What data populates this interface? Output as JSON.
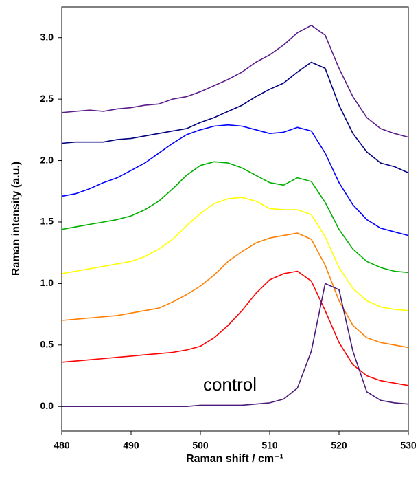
{
  "chart_data": {
    "type": "line",
    "x_label": "Raman shift / cm⁻¹",
    "y_label": "Raman intensity (a.u.)",
    "x": [
      480,
      482,
      484,
      486,
      488,
      490,
      492,
      494,
      496,
      498,
      500,
      502,
      504,
      506,
      508,
      510,
      512,
      514,
      516,
      518,
      520,
      522,
      524,
      526,
      528,
      530
    ],
    "xlim": [
      480,
      530
    ],
    "xticks": [
      480,
      490,
      500,
      510,
      520,
      530
    ],
    "ylim": [
      -0.2,
      3.25
    ],
    "yticks": [
      {
        "value": 0,
        "label": "0.0"
      },
      0.5,
      {
        "value": 1,
        "label": "1.0"
      },
      1.5,
      {
        "value": 2,
        "label": "2.0"
      },
      2.5,
      {
        "value": 3,
        "label": "3.0"
      }
    ],
    "series": [
      {
        "color": "#5a1e8c",
        "values": [
          2.39,
          2.4,
          2.41,
          2.4,
          2.42,
          2.43,
          2.45,
          2.46,
          2.5,
          2.52,
          2.56,
          2.61,
          2.66,
          2.72,
          2.8,
          2.86,
          2.94,
          3.04,
          3.1,
          3.02,
          2.75,
          2.52,
          2.35,
          2.26,
          2.22,
          2.19
        ]
      },
      {
        "color": "#000080",
        "values": [
          2.14,
          2.15,
          2.15,
          2.15,
          2.17,
          2.18,
          2.2,
          2.22,
          2.24,
          2.26,
          2.31,
          2.35,
          2.4,
          2.45,
          2.52,
          2.58,
          2.63,
          2.72,
          2.8,
          2.75,
          2.45,
          2.22,
          2.07,
          1.98,
          1.95,
          1.9
        ]
      },
      {
        "color": "#0000ff",
        "values": [
          1.71,
          1.73,
          1.77,
          1.82,
          1.86,
          1.92,
          1.98,
          2.06,
          2.14,
          2.21,
          2.25,
          2.28,
          2.29,
          2.28,
          2.25,
          2.22,
          2.23,
          2.27,
          2.24,
          2.06,
          1.82,
          1.64,
          1.52,
          1.45,
          1.42,
          1.39
        ]
      },
      {
        "color": "#00b000",
        "values": [
          1.44,
          1.46,
          1.48,
          1.5,
          1.52,
          1.55,
          1.6,
          1.67,
          1.77,
          1.88,
          1.96,
          1.99,
          1.98,
          1.94,
          1.88,
          1.82,
          1.8,
          1.86,
          1.83,
          1.66,
          1.44,
          1.28,
          1.18,
          1.13,
          1.1,
          1.09
        ]
      },
      {
        "color": "#ffff00",
        "values": [
          1.08,
          1.1,
          1.12,
          1.14,
          1.16,
          1.18,
          1.22,
          1.28,
          1.36,
          1.47,
          1.57,
          1.65,
          1.69,
          1.7,
          1.67,
          1.61,
          1.6,
          1.6,
          1.56,
          1.38,
          1.13,
          0.96,
          0.86,
          0.81,
          0.79,
          0.78
        ]
      },
      {
        "color": "#ff8000",
        "values": [
          0.7,
          0.71,
          0.72,
          0.73,
          0.74,
          0.76,
          0.78,
          0.8,
          0.85,
          0.91,
          0.98,
          1.07,
          1.18,
          1.26,
          1.33,
          1.37,
          1.39,
          1.41,
          1.36,
          1.15,
          0.86,
          0.66,
          0.56,
          0.52,
          0.5,
          0.48
        ]
      },
      {
        "color": "#ff0000",
        "values": [
          0.36,
          0.37,
          0.38,
          0.39,
          0.4,
          0.41,
          0.42,
          0.43,
          0.44,
          0.46,
          0.49,
          0.56,
          0.66,
          0.78,
          0.92,
          1.03,
          1.08,
          1.1,
          1.02,
          0.78,
          0.52,
          0.34,
          0.25,
          0.21,
          0.19,
          0.17
        ]
      },
      {
        "name": "control",
        "color": "#4b1a7a",
        "values": [
          0,
          0,
          0,
          0,
          0,
          0,
          0,
          0,
          0,
          0,
          0.01,
          0.01,
          0.01,
          0.01,
          0.02,
          0.03,
          0.06,
          0.15,
          0.45,
          1.0,
          0.95,
          0.45,
          0.12,
          0.05,
          0.03,
          0.02
        ]
      }
    ]
  }
}
